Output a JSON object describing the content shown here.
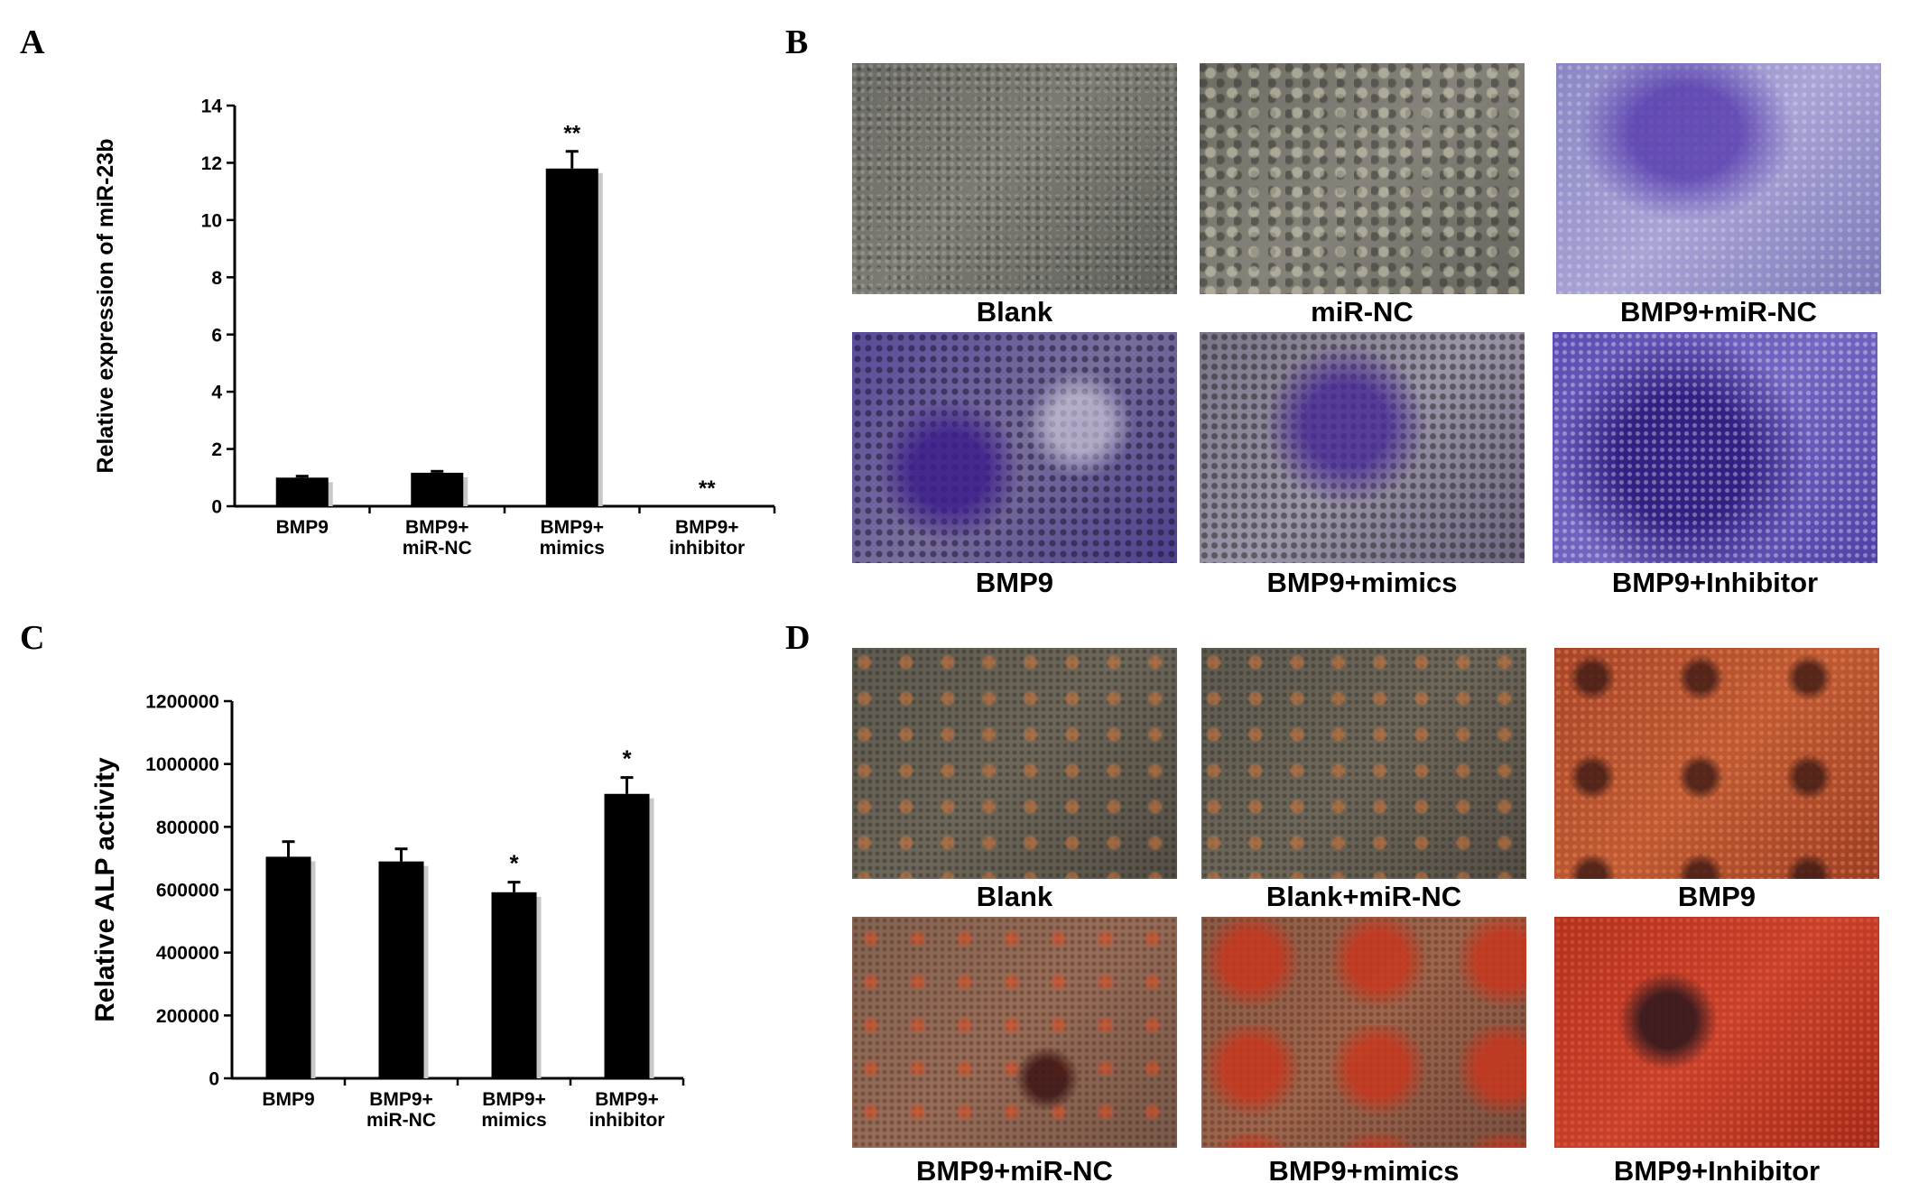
{
  "panels": {
    "A": {
      "letter": "A"
    },
    "B": {
      "letter": "B",
      "images": [
        {
          "caption": "Blank",
          "icon": "microscopy-gray-icon"
        },
        {
          "caption": "miR-NC",
          "icon": "microscopy-gray-icon"
        },
        {
          "caption": "BMP9+miR-NC",
          "icon": "microscopy-purple-icon"
        },
        {
          "caption": "BMP9",
          "icon": "microscopy-purple-icon"
        },
        {
          "caption": "BMP9+mimics",
          "icon": "microscopy-purple-icon"
        },
        {
          "caption": "BMP9+Inhibitor",
          "icon": "microscopy-purple-icon"
        }
      ]
    },
    "C": {
      "letter": "C"
    },
    "D": {
      "letter": "D",
      "images": [
        {
          "caption": "Blank",
          "icon": "microscopy-red-icon"
        },
        {
          "caption": "Blank+miR-NC",
          "icon": "microscopy-red-icon"
        },
        {
          "caption": "BMP9",
          "icon": "microscopy-red-icon"
        },
        {
          "caption": "BMP9+miR-NC",
          "icon": "microscopy-red-icon"
        },
        {
          "caption": "BMP9+mimics",
          "icon": "microscopy-red-icon"
        },
        {
          "caption": "BMP9+Inhibitor",
          "icon": "microscopy-red-icon"
        }
      ]
    }
  },
  "chart_data": [
    {
      "panel": "A",
      "type": "bar",
      "categories": [
        [
          "BMP9"
        ],
        [
          "BMP9+",
          "miR-NC"
        ],
        [
          "BMP9+",
          "mimics"
        ],
        [
          "BMP9+",
          "inhibitor"
        ]
      ],
      "values": [
        1.0,
        1.17,
        11.8,
        0.0
      ],
      "errors": [
        0.05,
        0.05,
        0.6,
        0.0
      ],
      "annotations": [
        "",
        "",
        "**",
        "**"
      ],
      "ylabel": "Relative expression of miR-23b",
      "xlabel": "",
      "ylim": [
        0,
        14
      ],
      "yticks": [
        0,
        2,
        4,
        6,
        8,
        10,
        12,
        14
      ],
      "bar_color": "#000000"
    },
    {
      "panel": "C",
      "type": "bar",
      "categories": [
        [
          "BMP9"
        ],
        [
          "BMP9+",
          "miR-NC"
        ],
        [
          "BMP9+",
          "mimics"
        ],
        [
          "BMP9+",
          "inhibitor"
        ]
      ],
      "values": [
        705000,
        690000,
        592000,
        905000
      ],
      "errors": [
        48000,
        40000,
        32000,
        52000
      ],
      "annotations": [
        "",
        "",
        "*",
        "*"
      ],
      "ylabel": "Relative ALP activity",
      "xlabel": "",
      "ylim": [
        0,
        1200000
      ],
      "yticks": [
        0,
        200000,
        400000,
        600000,
        800000,
        1000000,
        1200000
      ],
      "bar_color": "#000000"
    }
  ]
}
